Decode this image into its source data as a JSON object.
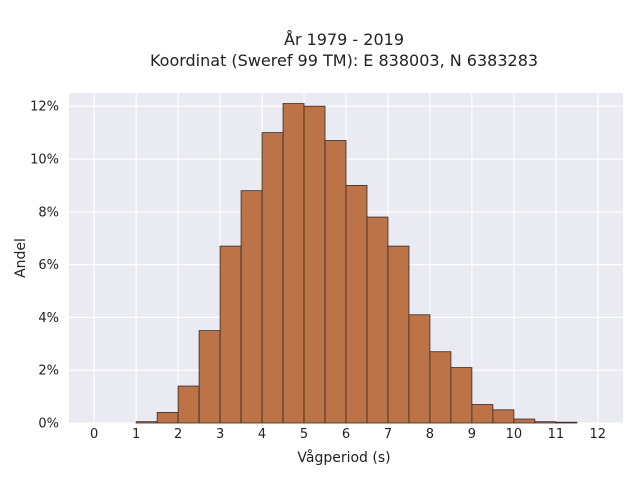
{
  "chart_data": {
    "type": "bar",
    "title_lines": [
      "År 1979 - 2019",
      "Koordinat (Sweref 99 TM): E 838003, N 6383283"
    ],
    "xlabel": "Vågperiod (s)",
    "ylabel": "Andel",
    "x_ticks": [
      "0",
      "1",
      "2",
      "3",
      "4",
      "5",
      "6",
      "7",
      "8",
      "9",
      "10",
      "11",
      "12"
    ],
    "y_ticks": [
      "0%",
      "2%",
      "4%",
      "6%",
      "8%",
      "10%",
      "12%"
    ],
    "xlim": [
      -0.6,
      12.6
    ],
    "ylim": [
      0,
      12.5
    ],
    "bin_width": 0.5,
    "bins": [
      {
        "x0": 1.0,
        "value": 0.05
      },
      {
        "x0": 1.5,
        "value": 0.4
      },
      {
        "x0": 2.0,
        "value": 1.4
      },
      {
        "x0": 2.5,
        "value": 3.5
      },
      {
        "x0": 3.0,
        "value": 6.7
      },
      {
        "x0": 3.5,
        "value": 8.8
      },
      {
        "x0": 4.0,
        "value": 11.0
      },
      {
        "x0": 4.5,
        "value": 12.1
      },
      {
        "x0": 5.0,
        "value": 12.0
      },
      {
        "x0": 5.5,
        "value": 10.7
      },
      {
        "x0": 6.0,
        "value": 9.0
      },
      {
        "x0": 6.5,
        "value": 7.8
      },
      {
        "x0": 7.0,
        "value": 6.7
      },
      {
        "x0": 7.5,
        "value": 4.1
      },
      {
        "x0": 8.0,
        "value": 2.7
      },
      {
        "x0": 8.5,
        "value": 2.1
      },
      {
        "x0": 9.0,
        "value": 0.7
      },
      {
        "x0": 9.5,
        "value": 0.5
      },
      {
        "x0": 10.0,
        "value": 0.15
      },
      {
        "x0": 10.5,
        "value": 0.05
      },
      {
        "x0": 11.0,
        "value": 0.03
      }
    ],
    "grid": true,
    "colors": {
      "bar_fill": "#bb7347",
      "bar_stroke": "#3a2a20",
      "plot_bg": "#e9eaf2",
      "grid": "#ffffff"
    }
  }
}
